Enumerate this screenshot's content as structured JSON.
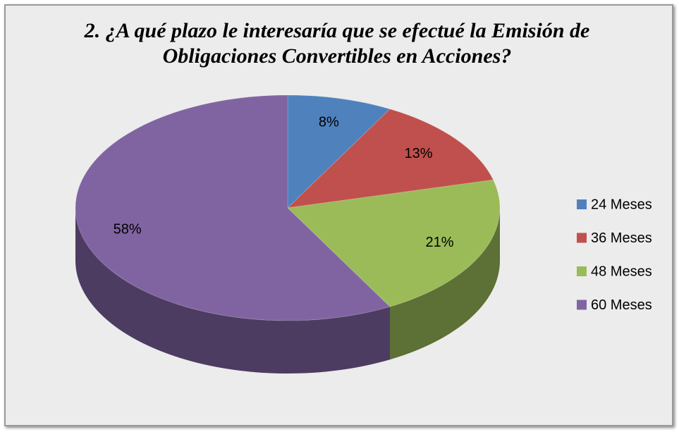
{
  "chart_data": {
    "type": "pie",
    "title": "2. ¿A qué plazo le interesaría que se efectué la Emisión de Obligaciones Convertibles en Acciones?",
    "categories": [
      "24 Meses",
      "36 Meses",
      "48 Meses",
      "60 Meses"
    ],
    "values": [
      8,
      13,
      21,
      58
    ],
    "value_labels": [
      "8%",
      "13%",
      "21%",
      "58%"
    ],
    "colors": [
      "#4f81bd",
      "#c0504d",
      "#9bbb59",
      "#8064a2"
    ],
    "legend": "right"
  }
}
